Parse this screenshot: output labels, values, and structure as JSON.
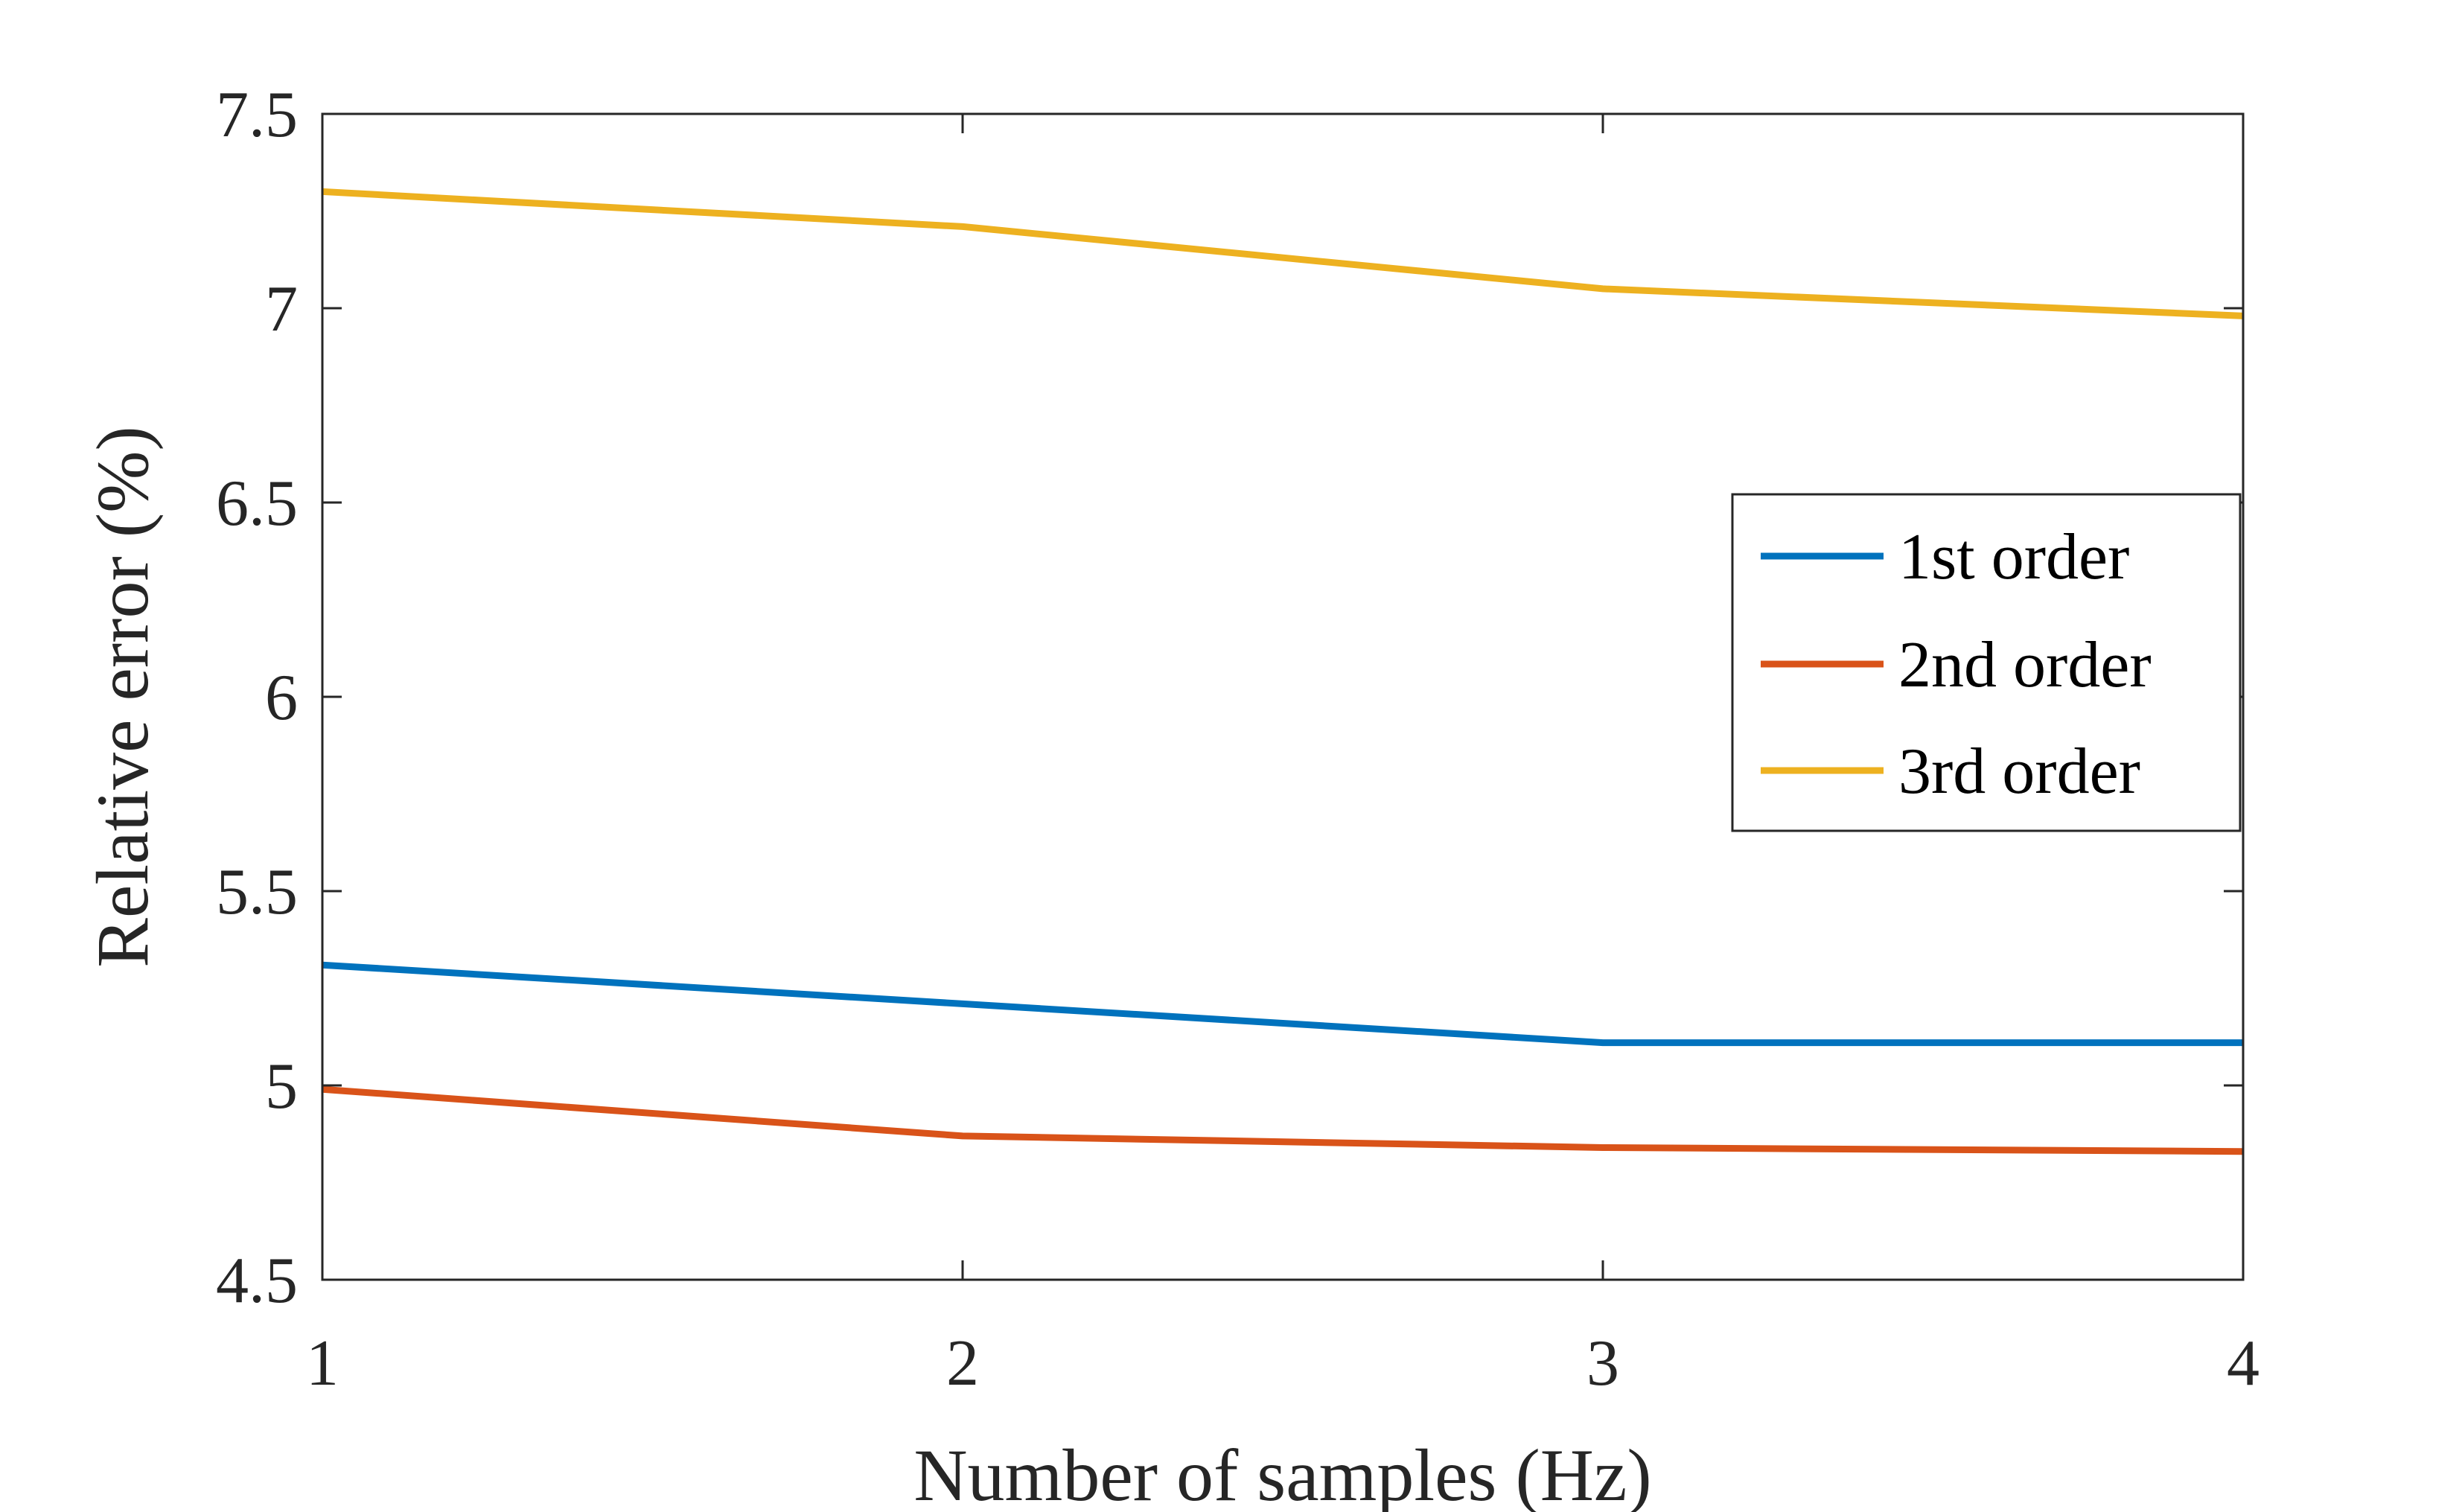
{
  "chart_data": {
    "type": "line",
    "title": "",
    "xlabel": "Number of samples (Hz)",
    "ylabel": "Relative error (%)",
    "xlim": [
      1,
      4
    ],
    "ylim": [
      4.5,
      7.5
    ],
    "x": [
      1,
      2,
      3,
      4
    ],
    "xticks": [
      "1",
      "2",
      "3",
      "4"
    ],
    "yticks": [
      "4.5",
      "5",
      "5.5",
      "6",
      "6.5",
      "7",
      "7.5"
    ],
    "grid": false,
    "legend_position": "right",
    "series": [
      {
        "name": "1st order",
        "color": "#0072BD",
        "values": [
          5.31,
          5.21,
          5.11,
          5.11
        ]
      },
      {
        "name": "2nd order",
        "color": "#D95319",
        "values": [
          4.99,
          4.87,
          4.84,
          4.83
        ]
      },
      {
        "name": "3rd order",
        "color": "#EDB120",
        "values": [
          7.3,
          7.21,
          7.05,
          6.98
        ]
      }
    ]
  }
}
